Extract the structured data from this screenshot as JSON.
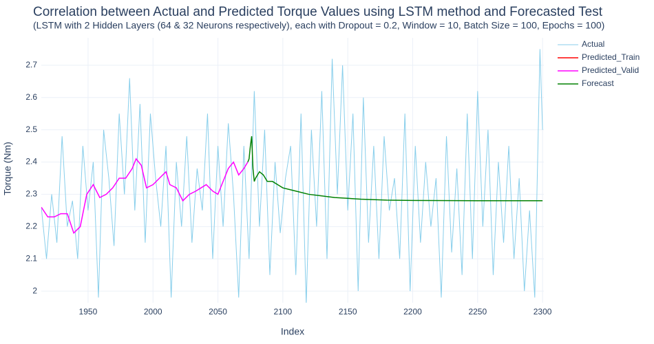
{
  "chart_data": {
    "type": "line",
    "title": "Correlation between Actual and Predicted Torque Values using LSTM method and Forecasted Test",
    "subtitle": "(LSTM with 2 Hidden Layers (64 & 32 Neurons respectively), each with Dropout = 0.2, Window = 10, Batch Size = 100, Epochs = 100)",
    "x_label": "Index",
    "y_label": "Torque (Nm)",
    "xlim": [
      1914,
      2301
    ],
    "ylim": [
      1.964,
      2.785
    ],
    "xticks": [
      1950,
      2000,
      2050,
      2100,
      2150,
      2200,
      2250,
      2300
    ],
    "yticks": [
      2,
      2.1,
      2.2,
      2.3,
      2.4,
      2.5,
      2.6,
      2.7
    ],
    "grid": true,
    "legend": "right",
    "series": [
      {
        "name": "Actual",
        "color": "#87ceeb",
        "x": [
          1914,
          1918,
          1922,
          1926,
          1930,
          1934,
          1938,
          1942,
          1946,
          1950,
          1954,
          1958,
          1962,
          1966,
          1970,
          1974,
          1978,
          1982,
          1986,
          1990,
          1994,
          1998,
          2002,
          2006,
          2010,
          2014,
          2018,
          2022,
          2026,
          2030,
          2034,
          2038,
          2042,
          2046,
          2050,
          2054,
          2058,
          2062,
          2066,
          2070,
          2074,
          2078,
          2082,
          2086,
          2090,
          2094,
          2098,
          2102,
          2106,
          2110,
          2114,
          2118,
          2122,
          2126,
          2130,
          2134,
          2138,
          2142,
          2146,
          2150,
          2154,
          2158,
          2162,
          2166,
          2170,
          2174,
          2178,
          2182,
          2186,
          2190,
          2194,
          2198,
          2202,
          2206,
          2210,
          2214,
          2218,
          2222,
          2226,
          2230,
          2234,
          2238,
          2242,
          2246,
          2250,
          2254,
          2258,
          2262,
          2266,
          2270,
          2274,
          2278,
          2282,
          2286,
          2290,
          2294,
          2298,
          2300
        ],
        "values": [
          2.26,
          2.1,
          2.3,
          2.15,
          2.48,
          2.2,
          2.28,
          2.1,
          2.45,
          2.25,
          2.4,
          1.98,
          2.5,
          2.35,
          2.14,
          2.55,
          2.3,
          2.66,
          2.25,
          2.58,
          2.15,
          2.55,
          2.35,
          2.2,
          2.45,
          1.98,
          2.4,
          2.2,
          2.48,
          2.15,
          2.38,
          2.25,
          2.55,
          2.1,
          2.45,
          2.2,
          2.52,
          2.3,
          1.98,
          2.45,
          2.1,
          2.62,
          2.2,
          2.5,
          2.05,
          2.4,
          2.18,
          2.35,
          2.45,
          2.05,
          2.55,
          1.96,
          2.5,
          2.2,
          2.62,
          2.1,
          2.72,
          2.3,
          2.7,
          2.25,
          2.55,
          2.0,
          2.6,
          2.15,
          2.45,
          2.1,
          2.48,
          2.25,
          2.35,
          2.1,
          2.55,
          2.0,
          2.45,
          2.15,
          2.4,
          2.2,
          2.35,
          1.98,
          2.48,
          2.12,
          2.38,
          2.05,
          2.55,
          2.1,
          2.62,
          2.2,
          2.5,
          2.05,
          2.4,
          2.15,
          2.45,
          2.1,
          2.35,
          2.0,
          2.25,
          1.98,
          2.75,
          2.5
        ]
      },
      {
        "name": "Predicted_Train",
        "color": "#ff0000",
        "x": [],
        "values": []
      },
      {
        "name": "Predicted_Valid",
        "color": "#ff00ff",
        "x": [
          1914,
          1919,
          1924,
          1929,
          1934,
          1939,
          1944,
          1949,
          1954,
          1959,
          1964,
          1969,
          1974,
          1979,
          1984,
          1987,
          1991,
          1995,
          2000,
          2005,
          2010,
          2013,
          2018,
          2023,
          2028,
          2033,
          2037,
          2041,
          2046,
          2050,
          2055,
          2058,
          2062,
          2066,
          2070,
          2073
        ],
        "values": [
          2.26,
          2.23,
          2.23,
          2.24,
          2.24,
          2.18,
          2.2,
          2.3,
          2.33,
          2.29,
          2.3,
          2.32,
          2.35,
          2.35,
          2.38,
          2.41,
          2.39,
          2.32,
          2.33,
          2.35,
          2.37,
          2.33,
          2.32,
          2.28,
          2.3,
          2.31,
          2.32,
          2.33,
          2.31,
          2.3,
          2.35,
          2.38,
          2.4,
          2.36,
          2.38,
          2.4
        ]
      },
      {
        "name": "Forecast",
        "color": "#008000",
        "x": [
          2073,
          2074,
          2075,
          2076,
          2077,
          2078,
          2079,
          2082,
          2085,
          2088,
          2092,
          2096,
          2100,
          2110,
          2120,
          2130,
          2140,
          2160,
          2180,
          2200,
          2250,
          2300
        ],
        "values": [
          2.4,
          2.41,
          2.45,
          2.48,
          2.38,
          2.34,
          2.35,
          2.37,
          2.36,
          2.34,
          2.34,
          2.33,
          2.32,
          2.31,
          2.3,
          2.295,
          2.29,
          2.285,
          2.282,
          2.281,
          2.28,
          2.28
        ]
      }
    ]
  }
}
